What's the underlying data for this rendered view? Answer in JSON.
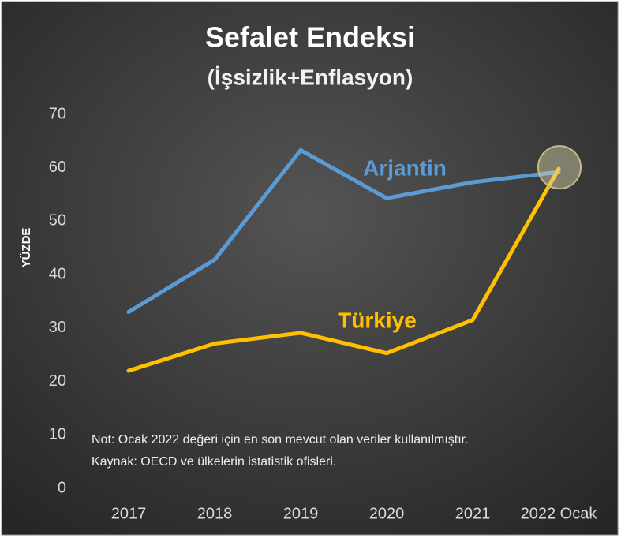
{
  "chart_data": {
    "type": "line",
    "title": "Sefalet Endeksi",
    "subtitle": "(İşsizlik+Enflasyon)",
    "y_label": "YÜZDE",
    "categories": [
      "2017",
      "2018",
      "2019",
      "2020",
      "2021",
      "2022 Ocak"
    ],
    "series": [
      {
        "name": "Arjantin",
        "color": "#5b9bd5",
        "values": [
          33,
          42.8,
          63.3,
          54.3,
          57.3,
          59.2
        ]
      },
      {
        "name": "Türkiye",
        "color": "#ffc000",
        "values": [
          22,
          27.1,
          29.1,
          25.3,
          31.5,
          59.8
        ]
      }
    ],
    "ylim": [
      0,
      70
    ],
    "yticks": [
      0,
      10,
      20,
      30,
      40,
      50,
      60,
      70
    ],
    "notes": [
      "Not: Ocak 2022 değeri için en son mevcut olan veriler kullanılmıştır.",
      "Kaynak: OECD ve ülkelerin istatistik ofisleri."
    ]
  }
}
